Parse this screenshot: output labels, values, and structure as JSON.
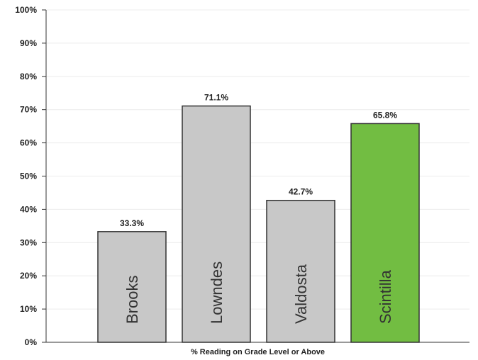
{
  "chart_data": {
    "type": "bar",
    "categories": [
      "Brooks",
      "Lowndes",
      "Valdosta",
      "Scintilla"
    ],
    "values": [
      33.3,
      71.1,
      42.7,
      65.8
    ],
    "value_labels": [
      "33.3%",
      "71.1%",
      "42.7%",
      "65.8%"
    ],
    "bar_colors": [
      "#c8c8c8",
      "#c8c8c8",
      "#c8c8c8",
      "#72bd42"
    ],
    "edge_color": "#333333",
    "title": "",
    "xlabel": "% Reading on Grade Level or Above",
    "ylabel": "",
    "ylim": [
      0,
      100
    ],
    "yticks": [
      0,
      10,
      20,
      30,
      40,
      50,
      60,
      70,
      80,
      90,
      100
    ],
    "ytick_labels": [
      "0%",
      "10%",
      "20%",
      "30%",
      "40%",
      "50%",
      "60%",
      "70%",
      "80%",
      "90%",
      "100%"
    ],
    "grid": true,
    "legend": "none"
  }
}
